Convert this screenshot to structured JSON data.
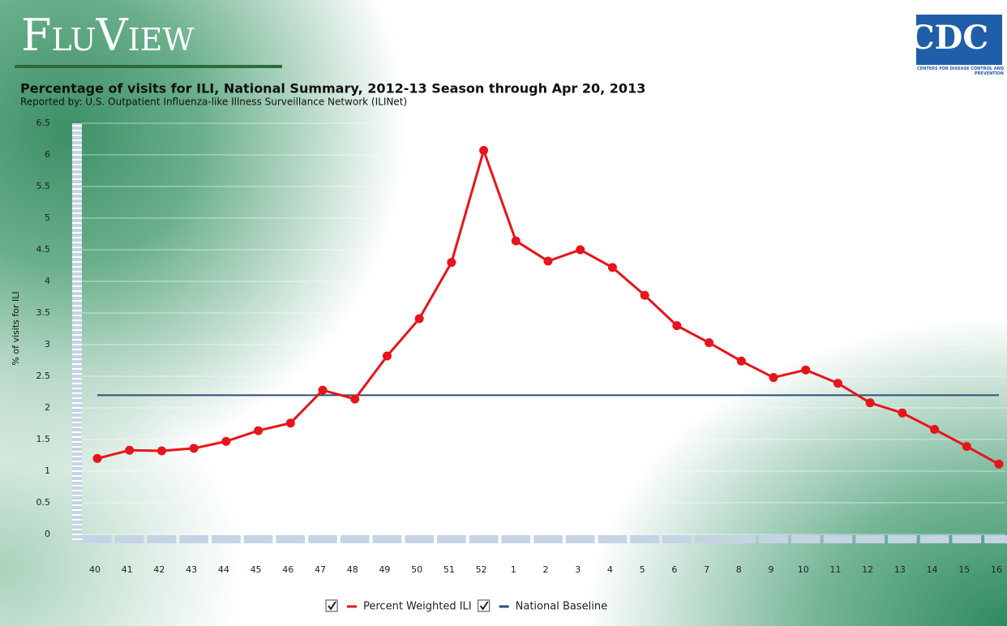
{
  "header": {
    "logo": "FluView",
    "agency": "CDC",
    "agency_full": "CENTERS FOR DISEASE CONTROL AND PREVENTION"
  },
  "chart_data": {
    "type": "line",
    "title": "Percentage of visits for ILI,  National Summary,  2012-13 Season through  Apr 20, 2013",
    "subtitle": "Reported by: U.S. Outpatient Influenza-like Illness Surveillance Network (ILINet)",
    "y_label": "% of visits for ILI",
    "categories": [
      "40",
      "41",
      "42",
      "43",
      "44",
      "45",
      "46",
      "47",
      "48",
      "49",
      "50",
      "51",
      "52",
      "1",
      "2",
      "3",
      "4",
      "5",
      "6",
      "7",
      "8",
      "9",
      "10",
      "11",
      "12",
      "13",
      "14",
      "15",
      "16"
    ],
    "series": [
      {
        "name": "Percent Weighted ILI",
        "color": "#e8141b",
        "markers": true,
        "values": [
          1.2,
          1.33,
          1.32,
          1.36,
          1.47,
          1.64,
          1.76,
          2.28,
          2.14,
          2.82,
          3.41,
          4.3,
          6.07,
          4.64,
          4.32,
          4.5,
          4.22,
          3.78,
          3.3,
          3.03,
          2.74,
          2.48,
          2.6,
          2.39,
          2.08,
          1.92,
          1.66,
          1.39,
          1.11
        ]
      },
      {
        "name": "National Baseline",
        "color": "#2e4e74",
        "markers": false,
        "values": [
          2.2,
          2.2,
          2.2,
          2.2,
          2.2,
          2.2,
          2.2,
          2.2,
          2.2,
          2.2,
          2.2,
          2.2,
          2.2,
          2.2,
          2.2,
          2.2,
          2.2,
          2.2,
          2.2,
          2.2,
          2.2,
          2.2,
          2.2,
          2.2,
          2.2,
          2.2,
          2.2,
          2.2,
          2.2
        ]
      }
    ],
    "ylim": [
      0,
      6.5
    ],
    "yticks": [
      0,
      0.5,
      1,
      1.5,
      2,
      2.5,
      3,
      3.5,
      4,
      4.5,
      5,
      5.5,
      6,
      6.5
    ],
    "grid": true
  }
}
